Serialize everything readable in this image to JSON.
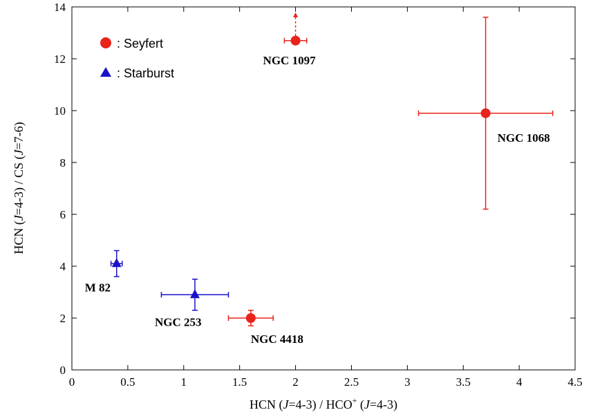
{
  "chart_data": {
    "type": "scatter",
    "xlabel": {
      "p1": "HCN (",
      "i1": "J",
      "p2": "=4-3) / HCO",
      "sup": "+",
      "p3": " (",
      "i2": "J",
      "p4": "=4-3)"
    },
    "ylabel": {
      "p1": "HCN (",
      "i1": "J",
      "p2": "=4-3) / CS (",
      "i2": "J",
      "p3": "=7-6)"
    },
    "xlim": [
      0,
      4.5
    ],
    "ylim": [
      0,
      14
    ],
    "xticks": [
      "0",
      "0.5",
      "1",
      "1.5",
      "2",
      "2.5",
      "3",
      "3.5",
      "4",
      "4.5"
    ],
    "yticks": [
      "0",
      "2",
      "4",
      "6",
      "8",
      "10",
      "12",
      "14"
    ],
    "grid": false,
    "legend_position": "top-left",
    "series": [
      {
        "name": ": Seyfert",
        "marker": "circle",
        "color": "#e8231b",
        "points": [
          {
            "label": "NGC 1097",
            "x": 2.0,
            "y": 12.7,
            "xerr": 0.1,
            "yerr_low": 0.0,
            "yerr_high": 0.0,
            "lower_limit": true
          },
          {
            "label": "NGC 1068",
            "x": 3.7,
            "y": 9.9,
            "xerr": 0.6,
            "yerr_low": 3.7,
            "yerr_high": 3.7,
            "lower_limit": false
          },
          {
            "label": "NGC 4418",
            "x": 1.6,
            "y": 2.0,
            "xerr": 0.2,
            "yerr_low": 0.3,
            "yerr_high": 0.3,
            "lower_limit": false
          }
        ]
      },
      {
        "name": ": Starburst",
        "marker": "triangle",
        "color": "#1a12c8",
        "points": [
          {
            "label": "M 82",
            "x": 0.4,
            "y": 4.1,
            "xerr": 0.05,
            "yerr_low": 0.5,
            "yerr_high": 0.5,
            "lower_limit": false
          },
          {
            "label": "NGC 253",
            "x": 1.1,
            "y": 2.9,
            "xerr": 0.3,
            "yerr_low": 0.6,
            "yerr_high": 0.6,
            "lower_limit": false
          }
        ]
      }
    ]
  }
}
